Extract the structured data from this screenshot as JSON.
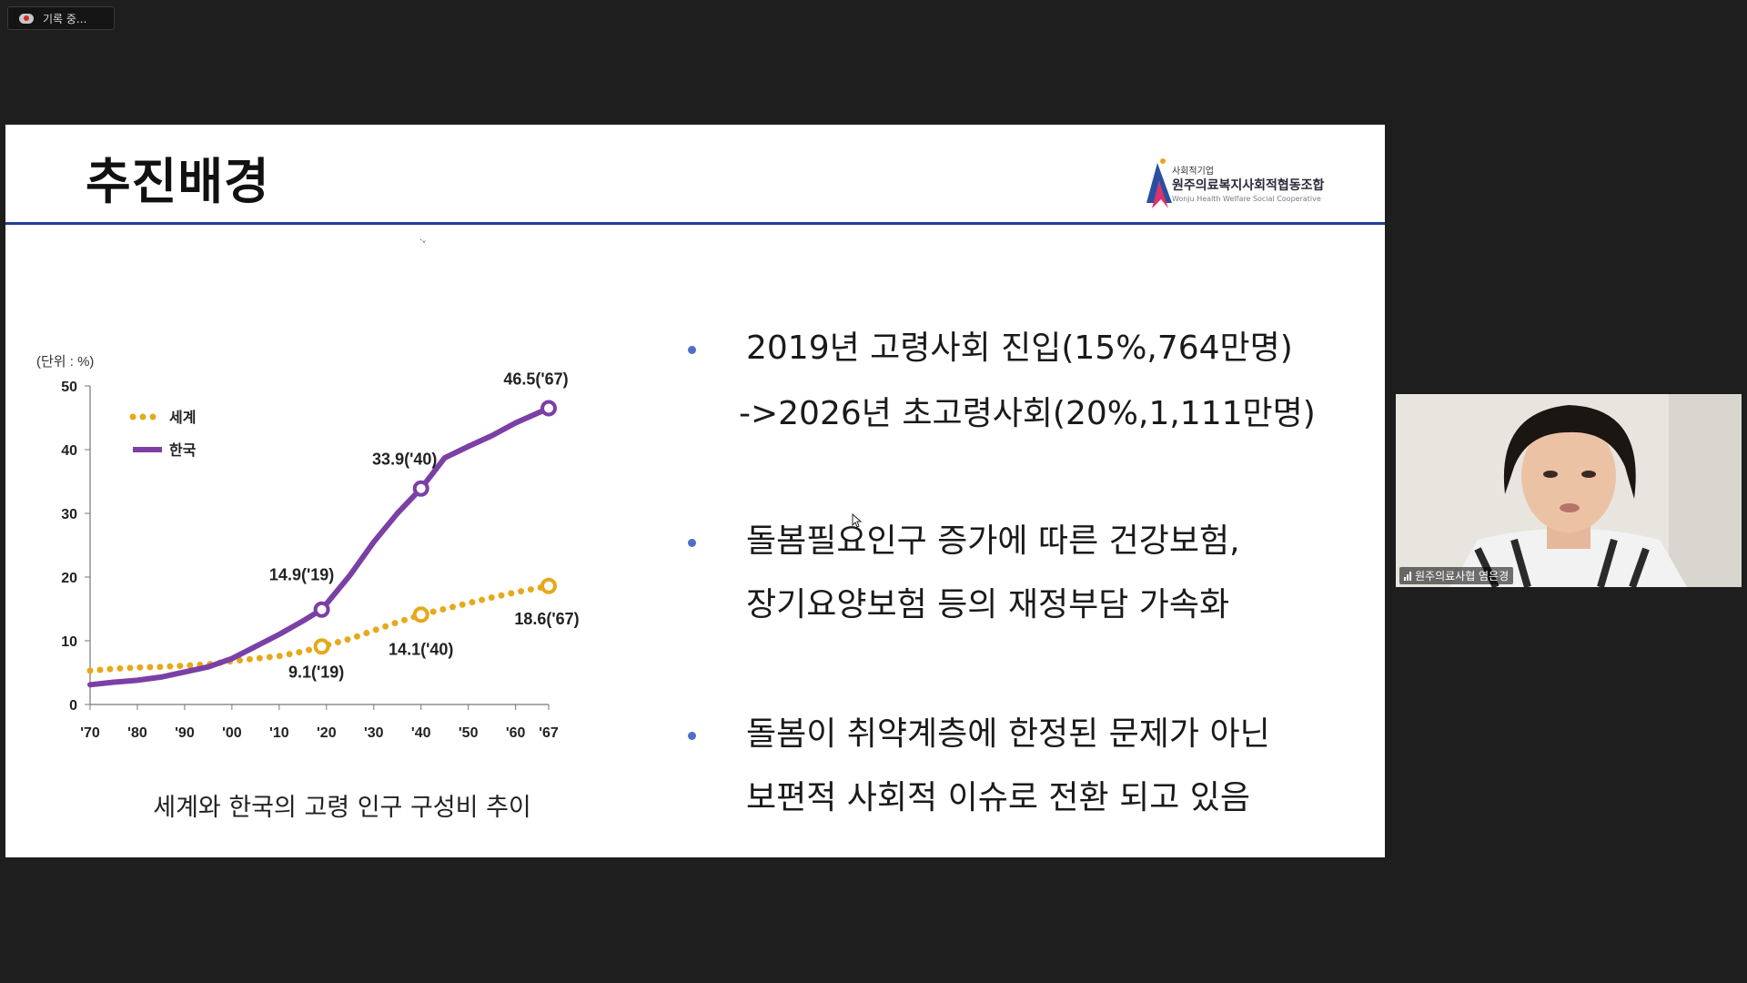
{
  "recording": {
    "label": "기록 중..."
  },
  "slide": {
    "title": "추진배경",
    "logo": {
      "small": "사회적기업",
      "main": "원주의료복지사회적협동조합",
      "english": "Wonju Health Welfare Social Cooperative"
    },
    "tick_mark": "·ᵥ",
    "caption": "세계와 한국의 고령 인구 구성비 추이",
    "bullets": [
      {
        "line1": "2019년 고령사회 진입(15%,764만명)",
        "line2": "->2026년 초고령사회(20%,1,111만명)"
      },
      {
        "line1": "돌봄필요인구 증가에 따른 건강보험,",
        "line2": "장기요양보험 등의 재정부담 가속화"
      },
      {
        "line1": "돌봄이 취약계층에 한정된 문제가 아닌",
        "line2": "보편적 사회적 이슈로 전환 되고 있음"
      }
    ]
  },
  "chart_data": {
    "type": "line",
    "unit_label": "(단위 : %)",
    "ylim": [
      0,
      50
    ],
    "yticks": [
      "0",
      "10",
      "20",
      "30",
      "40",
      "50"
    ],
    "xticks": [
      "'70",
      "'80",
      "'90",
      "'00",
      "'10",
      "'20",
      "'30",
      "'40",
      "'50",
      "'60",
      "'67"
    ],
    "x_years": [
      1970,
      1980,
      1990,
      2000,
      2010,
      2020,
      2030,
      2040,
      2050,
      2060,
      2067
    ],
    "legend_position": "top-left",
    "series": [
      {
        "name": "세계",
        "style": "dotted",
        "color": "#e5a91c",
        "years": [
          1970,
          1975,
          1980,
          1985,
          1990,
          1995,
          2000,
          2005,
          2010,
          2015,
          2019,
          2025,
          2030,
          2035,
          2040,
          2045,
          2050,
          2055,
          2060,
          2067
        ],
        "values": [
          5.3,
          5.6,
          5.8,
          5.9,
          6.1,
          6.3,
          6.8,
          7.2,
          7.6,
          8.3,
          9.1,
          10.3,
          11.6,
          12.9,
          14.1,
          15.0,
          15.9,
          16.8,
          17.6,
          18.6
        ]
      },
      {
        "name": "한국",
        "style": "solid",
        "color": "#7b3fa6",
        "years": [
          1970,
          1975,
          1980,
          1985,
          1990,
          1995,
          2000,
          2005,
          2010,
          2015,
          2019,
          2025,
          2030,
          2035,
          2040,
          2045,
          2050,
          2055,
          2060,
          2067
        ],
        "values": [
          3.1,
          3.5,
          3.8,
          4.3,
          5.1,
          5.9,
          7.2,
          9.1,
          11.0,
          13.1,
          14.9,
          20.3,
          25.5,
          30.0,
          33.9,
          38.7,
          40.5,
          42.2,
          44.2,
          46.5
        ]
      }
    ],
    "annotations": [
      {
        "series": "한국",
        "year": 2019,
        "value": 14.9,
        "label": "14.9('19)"
      },
      {
        "series": "한국",
        "year": 2040,
        "value": 33.9,
        "label": "33.9('40)"
      },
      {
        "series": "한국",
        "year": 2067,
        "value": 46.5,
        "label": "46.5('67)"
      },
      {
        "series": "세계",
        "year": 2019,
        "value": 9.1,
        "label": "9.1('19)"
      },
      {
        "series": "세계",
        "year": 2040,
        "value": 14.1,
        "label": "14.1('40)"
      },
      {
        "series": "세계",
        "year": 2067,
        "value": 18.6,
        "label": "18.6('67)"
      }
    ]
  },
  "participant": {
    "name": "원주의료사협 염은경"
  },
  "colors": {
    "title_rule": "#1f3f97",
    "bullet": "#4f6fc6",
    "background": "#1e1e1e"
  }
}
